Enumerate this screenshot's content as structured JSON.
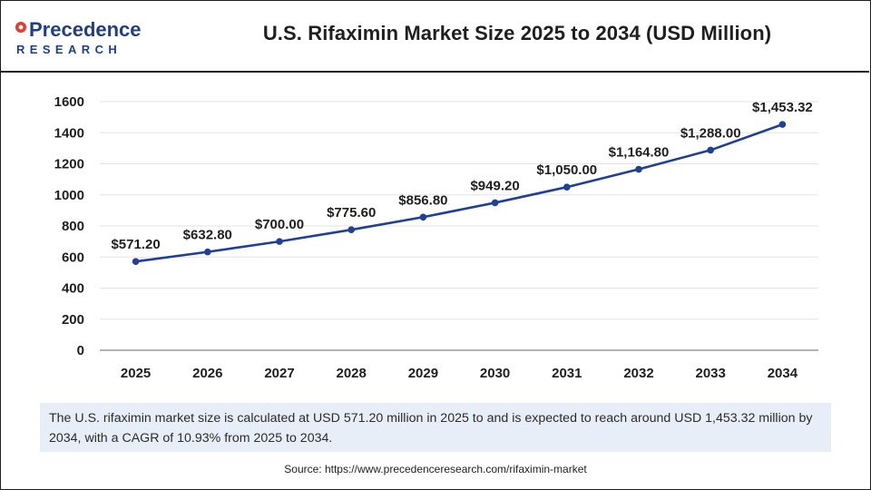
{
  "brand": {
    "name_line1": "Precedence",
    "name_line2": "RESEARCH",
    "colors": {
      "primary": "#1f3f8c",
      "accent": "#e63b2e"
    }
  },
  "header": {
    "title": "U.S. Rifaximin Market Size 2025 to 2034 (USD Million)"
  },
  "chart_data": {
    "type": "line",
    "title": "U.S. Rifaximin Market Size 2025 to 2034 (USD Million)",
    "xlabel": "",
    "ylabel": "",
    "categories": [
      "2025",
      "2026",
      "2027",
      "2028",
      "2029",
      "2030",
      "2031",
      "2032",
      "2033",
      "2034"
    ],
    "series": [
      {
        "name": "Market Size (USD Million)",
        "values": [
          571.2,
          632.8,
          700.0,
          775.6,
          856.8,
          949.2,
          1050.0,
          1164.8,
          1288.0,
          1453.32
        ],
        "labels": [
          "$571.20",
          "$632.80",
          "$700.00",
          "$775.60",
          "$856.80",
          "$949.20",
          "$1,050.00",
          "$1,164.80",
          "$1,288.00",
          "$1,453.32"
        ],
        "color": "#1f3f9a"
      }
    ],
    "ylim": [
      0,
      1600
    ],
    "yticks": [
      0,
      200,
      400,
      600,
      800,
      1000,
      1200,
      1400,
      1600
    ],
    "grid": true,
    "legend": "none"
  },
  "summary": {
    "text": "The U.S. rifaximin market size is calculated at USD 571.20 million in 2025 to and is expected to reach around USD 1,453.32 million by 2034, with a CAGR of 10.93% from 2025 to 2034."
  },
  "footer": {
    "source": "Source: https://www.precedenceresearch.com/rifaximin-market"
  }
}
